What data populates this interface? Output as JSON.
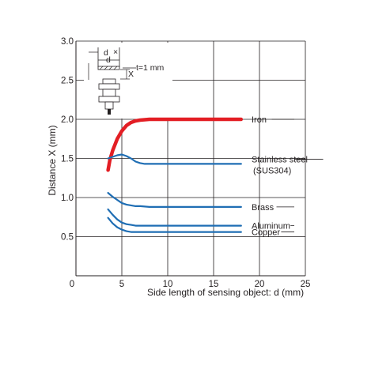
{
  "chart_data": {
    "type": "line",
    "title": "",
    "xlabel": "Side length of sensing object: d (mm)",
    "ylabel": "Distance X (mm)",
    "xlim": [
      0,
      25
    ],
    "ylim": [
      0,
      3.0
    ],
    "x_ticks": [
      "0",
      "5",
      "10",
      "15",
      "20",
      "25"
    ],
    "y_ticks": [
      "0.5",
      "1.0",
      "1.5",
      "2.0",
      "2.5",
      "3.0"
    ],
    "grid": true,
    "inset": {
      "d_label": "d",
      "d_marker": "d",
      "x_label": "X",
      "t_label": "t=1 mm"
    },
    "series": [
      {
        "name": "Iron",
        "color": "#e31e24",
        "x": [
          3.5,
          3.7,
          4.0,
          4.5,
          5.0,
          5.5,
          6.0,
          6.5,
          7.0,
          8.0,
          9.0,
          10.0,
          12.0,
          14.0,
          16.0,
          18.0
        ],
        "y": [
          1.35,
          1.48,
          1.6,
          1.75,
          1.85,
          1.92,
          1.96,
          1.98,
          1.99,
          2.0,
          2.0,
          2.0,
          2.0,
          2.0,
          2.0,
          2.0
        ]
      },
      {
        "name": "Stainless steel (SUS304)",
        "label_lines": [
          "Stainless steel",
          "(SUS304)"
        ],
        "color": "#1f6eb4",
        "x": [
          3.5,
          4.0,
          4.5,
          5.0,
          5.5,
          6.0,
          6.5,
          7.0,
          7.5,
          8.0,
          9.0,
          10.0,
          12.0,
          14.0,
          16.0,
          18.0
        ],
        "y": [
          1.5,
          1.52,
          1.54,
          1.55,
          1.53,
          1.5,
          1.46,
          1.44,
          1.43,
          1.43,
          1.43,
          1.43,
          1.43,
          1.43,
          1.43,
          1.43
        ]
      },
      {
        "name": "Brass",
        "color": "#1f6eb4",
        "x": [
          3.5,
          4.0,
          4.5,
          5.0,
          5.5,
          6.0,
          6.5,
          7.0,
          8.0,
          10.0,
          12.0,
          14.0,
          16.0,
          18.0
        ],
        "y": [
          1.06,
          1.01,
          0.97,
          0.93,
          0.91,
          0.9,
          0.89,
          0.89,
          0.88,
          0.88,
          0.88,
          0.88,
          0.88,
          0.88
        ]
      },
      {
        "name": "Aluminum",
        "color": "#1f6eb4",
        "x": [
          3.5,
          4.0,
          4.5,
          5.0,
          5.5,
          6.0,
          6.5,
          7.0,
          8.0,
          10.0,
          12.0,
          14.0,
          16.0,
          18.0
        ],
        "y": [
          0.85,
          0.78,
          0.72,
          0.68,
          0.66,
          0.65,
          0.64,
          0.64,
          0.64,
          0.64,
          0.64,
          0.64,
          0.64,
          0.64
        ]
      },
      {
        "name": "Copper",
        "color": "#1f6eb4",
        "x": [
          3.5,
          4.0,
          4.5,
          5.0,
          5.5,
          6.0,
          6.5,
          7.0,
          8.0,
          10.0,
          12.0,
          14.0,
          16.0,
          18.0
        ],
        "y": [
          0.74,
          0.67,
          0.62,
          0.59,
          0.57,
          0.56,
          0.56,
          0.56,
          0.56,
          0.56,
          0.56,
          0.56,
          0.56,
          0.56
        ]
      }
    ]
  }
}
